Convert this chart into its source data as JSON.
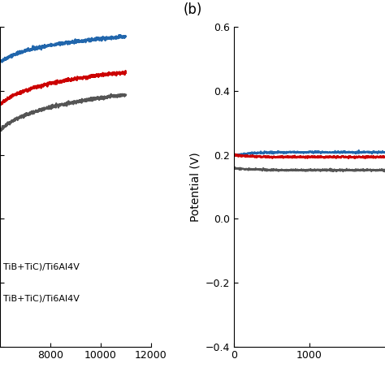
{
  "panel_b_label": "(b)",
  "ylabel": "Potential (V)",
  "ylim": [
    -0.4,
    0.6
  ],
  "yticks": [
    -0.4,
    -0.2,
    0.0,
    0.2,
    0.4,
    0.6
  ],
  "panel_b_xlim": [
    0,
    2000
  ],
  "panel_b_xticks": [
    0,
    1000
  ],
  "panel_a_xlim": [
    6000,
    12000
  ],
  "panel_a_xticks": [
    8000,
    10000,
    12000
  ],
  "colors_blue": "#2166ac",
  "colors_red": "#cc0000",
  "colors_dark": "#555555",
  "line_width": 1.6,
  "background": "#ffffff",
  "legend_line1": "TiB+TiC)/Ti6Al4V",
  "legend_line2": "TiB+TiC)/Ti6Al4V",
  "tick_labelsize": 9,
  "ylabel_fontsize": 10,
  "panel_label_fontsize": 12,
  "noise_scale_a": 0.0025,
  "noise_scale_b": 0.0015
}
